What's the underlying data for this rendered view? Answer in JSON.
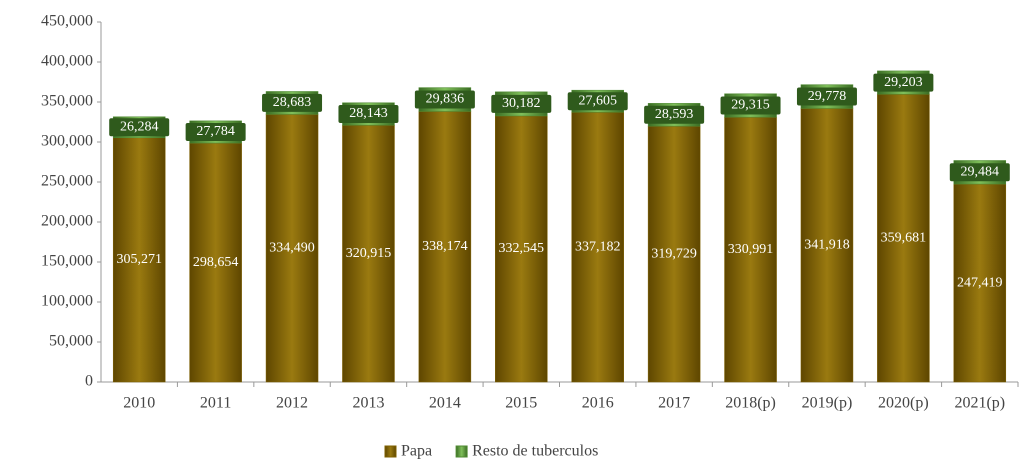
{
  "chart_data": {
    "type": "stacked-bar",
    "categories": [
      "2010",
      "2011",
      "2012",
      "2013",
      "2014",
      "2015",
      "2016",
      "2017",
      "2018(p)",
      "2019(p)",
      "2020(p)",
      "2021(p)"
    ],
    "series": [
      {
        "name": "Papa",
        "color": "#7f6000",
        "values": [
          305271,
          298654,
          334490,
          320915,
          338174,
          332545,
          337182,
          319729,
          330991,
          341918,
          359681,
          247419
        ],
        "value_labels": [
          "305,271",
          "298,654",
          "334,490",
          "320,915",
          "338,174",
          "332,545",
          "337,182",
          "319,729",
          "330,991",
          "341,918",
          "359,681",
          "247,419"
        ]
      },
      {
        "name": "Resto de tuberculos",
        "color": "#4f8a32",
        "values": [
          26284,
          27784,
          28683,
          28143,
          29836,
          30182,
          27605,
          28593,
          29315,
          29778,
          29203,
          29484
        ],
        "value_labels": [
          "26,284",
          "27,784",
          "28,683",
          "28,143",
          "29,836",
          "30,182",
          "27,605",
          "28,593",
          "29,315",
          "29,778",
          "29,203",
          "29,484"
        ]
      }
    ],
    "ylim": [
      0,
      450000
    ],
    "yticks": [
      0,
      {
        "value": 50000,
        "label": "50,000"
      },
      {
        "value": 100000,
        "label": "100,000"
      },
      {
        "value": 150000,
        "label": "150,000"
      },
      {
        "value": 200000,
        "label": "200,000"
      },
      {
        "value": 250000,
        "label": "250,000"
      },
      {
        "value": 300000,
        "label": "300,000"
      },
      {
        "value": 350000,
        "label": "350,000"
      },
      {
        "value": 400000,
        "label": "400,000"
      },
      {
        "value": 450000,
        "label": "450,000"
      }
    ],
    "legend": "bottom"
  }
}
